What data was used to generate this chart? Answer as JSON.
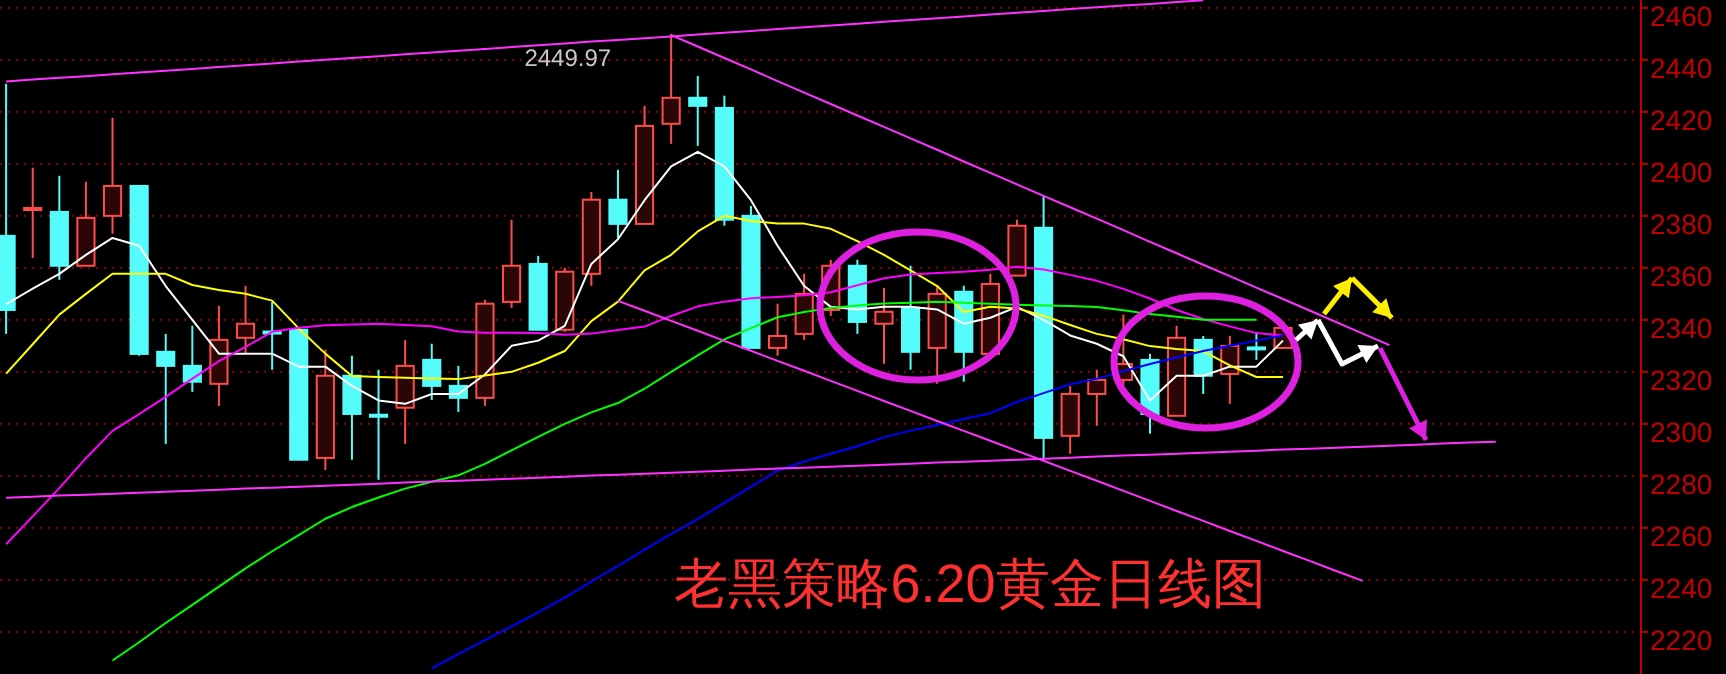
{
  "chart_data": {
    "type": "candlestick",
    "categories": [
      null,
      null,
      null,
      null,
      null,
      null,
      null,
      null,
      null,
      null,
      null,
      null,
      null,
      null,
      null,
      null,
      null,
      null,
      null,
      null,
      null,
      null,
      null,
      null,
      null,
      null,
      null,
      null,
      null,
      null,
      null,
      null,
      null,
      null,
      null,
      null,
      null,
      null,
      null,
      null,
      null,
      null,
      null,
      null,
      null,
      null,
      null,
      null,
      null,
      null,
      null,
      null,
      null,
      null,
      null,
      null,
      null
    ],
    "ohlc": [
      [
        2372.3,
        2430.8,
        2334.6,
        2343.8
      ],
      [
        2382.5,
        2398.5,
        2363.8,
        2383
      ],
      [
        2381.5,
        2395.4,
        2355.4,
        2360.8
      ],
      [
        2360.8,
        2393.1,
        2360.8,
        2379.2
      ],
      [
        2380,
        2417.7,
        2373.1,
        2391.5
      ],
      [
        2391.5,
        2391.5,
        2326.2,
        2326.9
      ],
      [
        2327.7,
        2334.6,
        2292.3,
        2322.3
      ],
      [
        2322.3,
        2337.7,
        2312.3,
        2316.2
      ],
      [
        2315.4,
        2345.4,
        2306.9,
        2332.3
      ],
      [
        2333.1,
        2353.1,
        2326.9,
        2338.5
      ],
      [
        2335.5,
        2346.9,
        2320.8,
        2335
      ],
      [
        2336.2,
        2336.2,
        2286.2,
        2286.2
      ],
      [
        2286.9,
        2328.5,
        2282.3,
        2318.5
      ],
      [
        2318.5,
        2326.2,
        2286.2,
        2303.8
      ],
      [
        2303.5,
        2320.8,
        2278.5,
        2303
      ],
      [
        2306.2,
        2332.3,
        2292.3,
        2322.3
      ],
      [
        2324.6,
        2330.8,
        2309.2,
        2314.6
      ],
      [
        2314.6,
        2322.3,
        2304.6,
        2310
      ],
      [
        2310,
        2347.7,
        2306.9,
        2346.2
      ],
      [
        2346.9,
        2378.5,
        2344.6,
        2360.8
      ],
      [
        2361.5,
        2364.6,
        2336.2,
        2336.2
      ],
      [
        2336.2,
        2360,
        2335.4,
        2358.5
      ],
      [
        2357.7,
        2389.2,
        2353.1,
        2386.2
      ],
      [
        2386.2,
        2397.7,
        2371.5,
        2376.9
      ],
      [
        2376.9,
        2422.3,
        2376.9,
        2414.6
      ],
      [
        2415.4,
        2449.97,
        2407.7,
        2425.4
      ],
      [
        2425.4,
        2433.8,
        2406.9,
        2422.3
      ],
      [
        2421.5,
        2426.2,
        2376.2,
        2378.5
      ],
      [
        2380,
        2383.8,
        2329.2,
        2329.2
      ],
      [
        2329.2,
        2346.2,
        2326.2,
        2333.8
      ],
      [
        2334.6,
        2357.7,
        2332.3,
        2350
      ],
      [
        2343.8,
        2363.1,
        2341.5,
        2360.8
      ],
      [
        2360.8,
        2363.1,
        2334.6,
        2339.2
      ],
      [
        2338.5,
        2352.3,
        2323.1,
        2343.1
      ],
      [
        2344.6,
        2360.8,
        2320.8,
        2327.7
      ],
      [
        2329.2,
        2353.1,
        2315.4,
        2350
      ],
      [
        2350.8,
        2353.1,
        2316.2,
        2327.7
      ],
      [
        2326.9,
        2357.7,
        2326.9,
        2353.8
      ],
      [
        2357,
        2378.5,
        2357,
        2376.2
      ],
      [
        2375.4,
        2387.7,
        2286.2,
        2294.6
      ],
      [
        2295.4,
        2314.6,
        2288.5,
        2311.5
      ],
      [
        2311.5,
        2320.8,
        2299.2,
        2316.9
      ],
      [
        2316.9,
        2342,
        2315,
        2323
      ],
      [
        2324.6,
        2326.9,
        2296.2,
        2303.8
      ],
      [
        2303.1,
        2337.7,
        2303.1,
        2333.1
      ],
      [
        2332.3,
        2333.8,
        2311.5,
        2318.5
      ],
      [
        2319.2,
        2333.8,
        2307.7,
        2330
      ],
      [
        2329.4,
        2335.4,
        2324.6,
        2329.2
      ],
      [
        2329.2,
        2337.7,
        2329.2,
        2336.9
      ],
      null,
      null,
      null,
      null,
      null,
      null,
      null,
      null
    ],
    "series": [
      {
        "type": "line",
        "color": "#ffffff",
        "values": [
          2346,
          2352,
          2357.7,
          2365,
          2371.5,
          2368.5,
          2353,
          2340,
          2327,
          2327,
          2327,
          2322,
          2322,
          2314.6,
          2309,
          2307.7,
          2311.5,
          2311.5,
          2319,
          2330,
          2332,
          2337.7,
          2361.5,
          2371,
          2386,
          2399,
          2404.6,
          2399,
          2386,
          2368.5,
          2353,
          2345,
          2344,
          2345,
          2345,
          2344,
          2338.5,
          2340.8,
          2345,
          2340,
          2334,
          2330.8,
          2326,
          2309,
          2318.5,
          2318.5,
          2322,
          2322,
          2332,
          null,
          null,
          null,
          null,
          null,
          null,
          null,
          null
        ]
      },
      {
        "type": "line",
        "color": "#ffff00",
        "values": [
          2319.3,
          2330.6,
          2342,
          2350,
          2357.7,
          2357.7,
          2357.7,
          2353.4,
          2351.5,
          2350,
          2347.4,
          2336.7,
          2327,
          2318.4,
          2318,
          2317.7,
          2317.4,
          2317.2,
          2318.6,
          2320,
          2323.5,
          2328,
          2339.5,
          2347,
          2359,
          2365,
          2374,
          2380,
          2378,
          2377,
          2377,
          2375,
          2370.3,
          2365,
          2359,
          2353,
          2343,
          2345,
          2344.4,
          2341.6,
          2338,
          2334.6,
          2332.5,
          2329.9,
          2328.8,
          2328,
          2322.5,
          2318,
          2318,
          null,
          null,
          null,
          null,
          null,
          null,
          null,
          null
        ]
      },
      {
        "type": "line",
        "color": "#ff00ff",
        "values": [
          2253.7,
          2264.4,
          2275.3,
          2286.8,
          2297.3,
          2303.7,
          2310.4,
          2317.4,
          2324.1,
          2329.6,
          2335.4,
          2337,
          2337.9,
          2338.2,
          2338.5,
          2338,
          2337.5,
          2335.5,
          2335,
          2335,
          2334.9,
          2334.3,
          2334.7,
          2336.1,
          2337.4,
          2341.5,
          2345.2,
          2347,
          2348.3,
          2348.8,
          2349.5,
          2350.6,
          2353.3,
          2356,
          2357.4,
          2358,
          2358.5,
          2359.3,
          2360.4,
          2359.4,
          2357.3,
          2355,
          2351.9,
          2348.2,
          2343.8,
          2340.3,
          2337.5,
          2334.9,
          2334,
          null,
          null,
          null,
          null,
          null,
          null,
          null,
          null
        ]
      },
      {
        "type": "line",
        "color": "#00ff00",
        "values": [
          null,
          null,
          null,
          null,
          2209,
          2216,
          2223.4,
          2230.4,
          2237.4,
          2244.4,
          2251,
          2257.2,
          2263.5,
          2268,
          2271.7,
          2275.1,
          2277.7,
          2280.2,
          2284.6,
          2289.8,
          2295,
          2300,
          2304.4,
          2308,
          2313.5,
          2320,
          2326.3,
          2332.5,
          2336.8,
          2341,
          2343,
          2344.6,
          2345.5,
          2346.3,
          2346.6,
          2347,
          2346.6,
          2346.2,
          2345.8,
          2345.5,
          2345.3,
          2344.9,
          2343.7,
          2342.2,
          2341.2,
          2340,
          2340,
          2340,
          null,
          null,
          null,
          null,
          null,
          null,
          null,
          null,
          null
        ]
      },
      {
        "type": "line",
        "color": "#0000ff",
        "values": [
          null,
          null,
          null,
          null,
          null,
          null,
          null,
          null,
          null,
          null,
          null,
          null,
          null,
          null,
          null,
          null,
          2206,
          2211.4,
          2216.8,
          2222.1,
          2227.5,
          2233.2,
          2239.3,
          2245.4,
          2251.6,
          2257.7,
          2263.4,
          2269.6,
          2275.8,
          2282,
          2285.5,
          2288.5,
          2291.4,
          2294.8,
          2297.4,
          2299.6,
          2301.9,
          2304.1,
          2308.4,
          2311.8,
          2315.2,
          2317.3,
          2320.2,
          2323,
          2325.5,
          2328,
          2330,
          2332,
          2334,
          null,
          null,
          null,
          null,
          null,
          null,
          null,
          null
        ]
      },
      {
        "type": "line",
        "color": "#ff33ff",
        "values": [
          2431.7,
          2432.4,
          2433.1,
          2433.7,
          2434.4,
          2435.1,
          2435.8,
          2436.5,
          2437.2,
          2437.9,
          2438.6,
          2439.3,
          2440,
          2440.7,
          2441.4,
          2442.1,
          2442.8,
          2443.5,
          2444.2,
          2444.9,
          2445.6,
          2446.3,
          2447,
          2447.6,
          2448.3,
          2449,
          2449.7,
          2450.4,
          2451.1,
          2451.8,
          2452.5,
          2453.2,
          2453.9,
          2454.6,
          2455.3,
          2456,
          2456.7,
          2457.4,
          2458.1,
          2458.8,
          2459.5,
          2460.2,
          2460.9,
          2461.5,
          2462.2,
          2462.9,
          null,
          null,
          null,
          null,
          null,
          null,
          null,
          null,
          null,
          null,
          null
        ]
      },
      {
        "type": "line",
        "color": "#ff33ff",
        "values": [
          2271.6,
          2272,
          2272.4,
          2272.7,
          2273.1,
          2273.5,
          2273.9,
          2274.3,
          2274.7,
          2275.1,
          2275.4,
          2275.8,
          2276.2,
          2276.6,
          2277,
          2277.4,
          2277.8,
          2278.1,
          2278.5,
          2278.9,
          2279.3,
          2279.7,
          2280.1,
          2280.4,
          2280.8,
          2281.2,
          2281.6,
          2282,
          2282.4,
          2282.8,
          2283.1,
          2283.5,
          2283.9,
          2284.3,
          2284.7,
          2285.1,
          2285.4,
          2285.8,
          2286.2,
          2286.6,
          2287,
          2287.4,
          2287.8,
          2288.1,
          2288.5,
          2288.9,
          2289.3,
          2289.7,
          2290.1,
          2290.4,
          2290.8,
          2291.2,
          2291.6,
          2292,
          2292.4,
          2292.8,
          2293.1
        ]
      },
      {
        "type": "line",
        "color": "#ff33ff",
        "values": [
          null,
          null,
          null,
          null,
          null,
          null,
          null,
          null,
          null,
          null,
          null,
          null,
          null,
          null,
          null,
          null,
          null,
          null,
          null,
          null,
          null,
          null,
          null,
          null,
          null,
          2449.5,
          2445.1,
          2440.7,
          2436.3,
          2431.8,
          2427.4,
          2423,
          2418.6,
          2414.2,
          2409.8,
          2405.4,
          2400.9,
          2396.5,
          2392.1,
          2387.7,
          2383.3,
          2378.9,
          2374.5,
          2370,
          2365.6,
          2361.2,
          2356.8,
          2352.4,
          2348,
          2343.6,
          2339.1,
          2334.7,
          2330.3,
          null,
          null,
          null,
          null
        ]
      },
      {
        "type": "line",
        "color": "#ff33ff",
        "values": [
          null,
          null,
          null,
          null,
          null,
          null,
          null,
          null,
          null,
          null,
          null,
          null,
          null,
          null,
          null,
          null,
          null,
          null,
          null,
          null,
          null,
          null,
          null,
          2347.3,
          2343.5,
          2339.6,
          2335.8,
          2331.9,
          2328.1,
          2324.2,
          2320.4,
          2316.5,
          2312.7,
          2308.8,
          2305,
          2301.1,
          2297.3,
          2293.5,
          2289.6,
          2285.8,
          2281.9,
          2278.1,
          2274.2,
          2270.4,
          2266.5,
          2262.7,
          2258.8,
          2255,
          2251.1,
          2247.3,
          2243.4,
          2239.6,
          null,
          null,
          null,
          null,
          null
        ]
      }
    ],
    "ylim": [
      2203.8,
      2463
    ],
    "yticks": [
      2220,
      2240,
      2260,
      2280,
      2300,
      2320,
      2340,
      2360,
      2380,
      2400,
      2420,
      2440,
      2460
    ],
    "grid": "y",
    "tick_labels": "y",
    "annotations": [
      "2449.97",
      "老黑策略6.20黄金日线图"
    ]
  }
}
